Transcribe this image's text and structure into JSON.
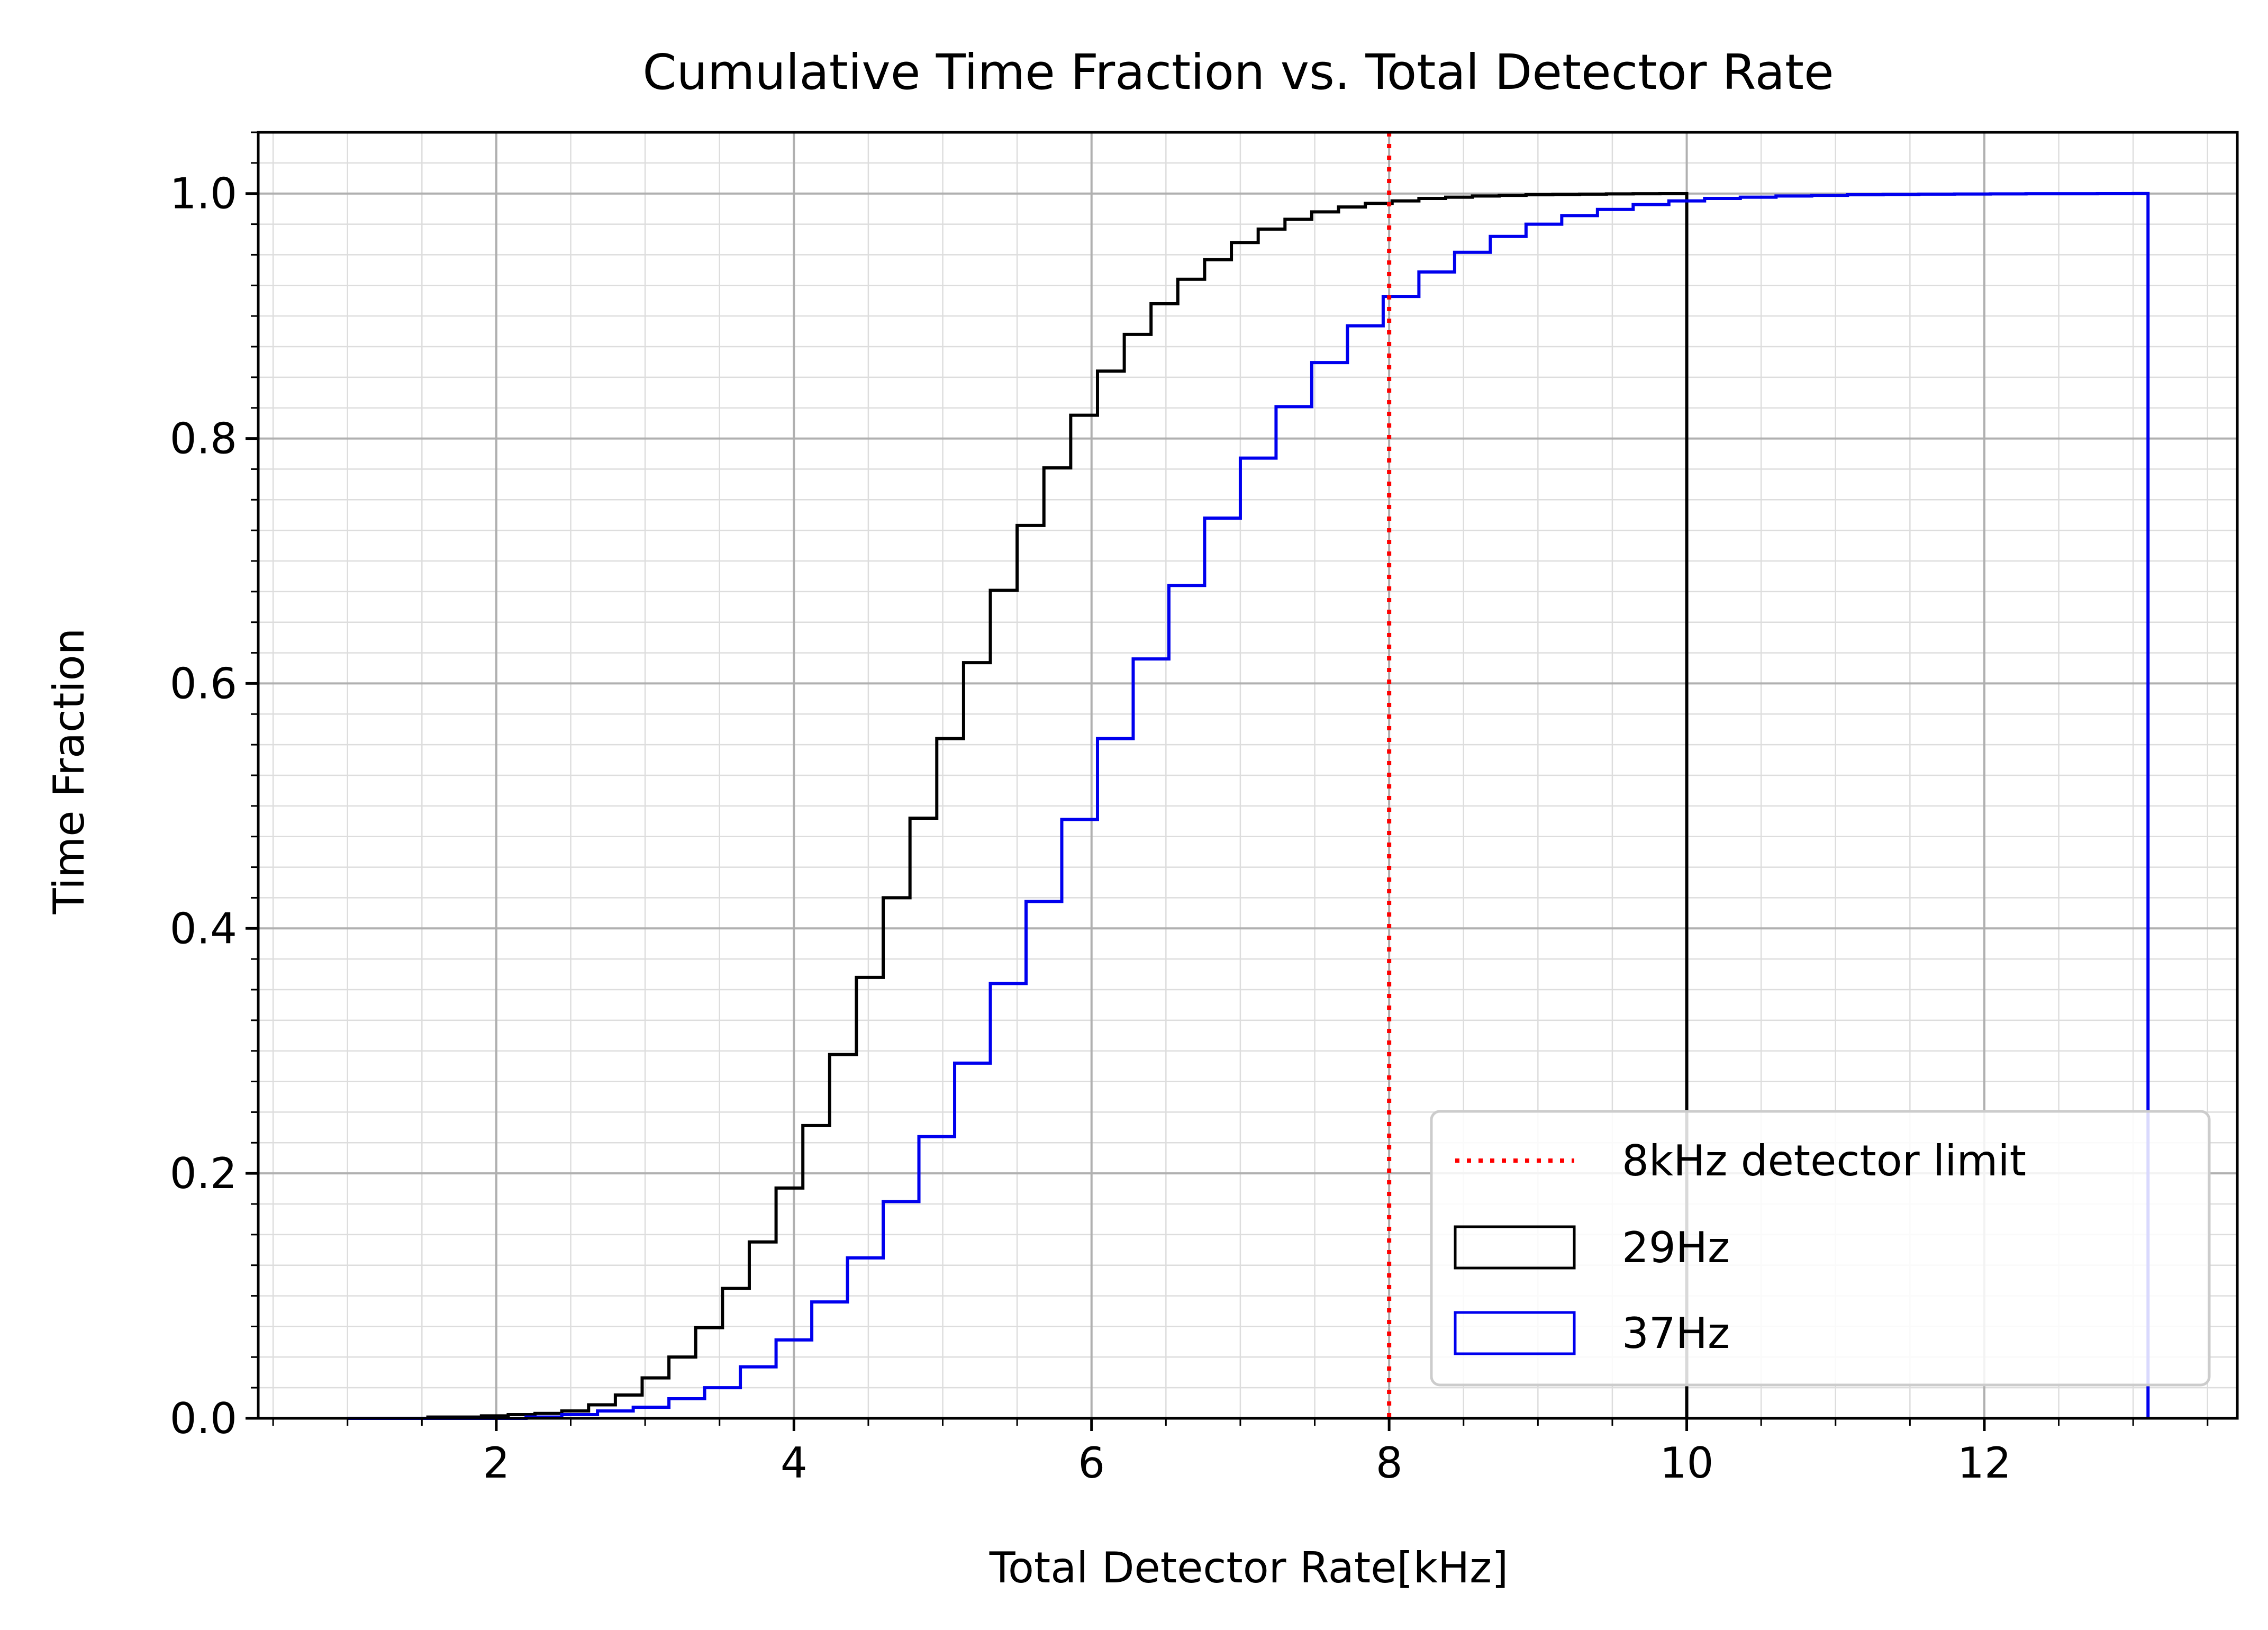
{
  "chart_data": {
    "type": "step",
    "title": "Cumulative Time Fraction vs. Total Detector Rate",
    "xlabel": "Total Detector Rate[kHz]",
    "ylabel": "Time Fraction",
    "xlim": [
      0.4,
      13.7
    ],
    "ylim": [
      0.0,
      1.05
    ],
    "x_ticks": [
      2,
      4,
      6,
      8,
      10,
      12
    ],
    "x_tick_labels": [
      "2",
      "4",
      "6",
      "8",
      "10",
      "12"
    ],
    "y_ticks": [
      0.0,
      0.2,
      0.4,
      0.6,
      0.8,
      1.0
    ],
    "y_tick_labels": [
      "0.0",
      "0.2",
      "0.4",
      "0.6",
      "0.8",
      "1.0"
    ],
    "grid": "major and minor",
    "legend_position": "lower-right",
    "vline": {
      "x": 8,
      "label": "8kHz detector limit",
      "color": "#ff0000",
      "style": "dotted"
    },
    "series": [
      {
        "name": "29Hz",
        "color": "#000000",
        "bin_width": 0.18,
        "x_start": 1.0,
        "x_end": 10.0,
        "values": [
          0.0,
          0.0,
          0.0,
          0.001,
          0.001,
          0.002,
          0.003,
          0.004,
          0.006,
          0.011,
          0.019,
          0.033,
          0.05,
          0.074,
          0.106,
          0.144,
          0.188,
          0.239,
          0.297,
          0.36,
          0.425,
          0.49,
          0.555,
          0.617,
          0.676,
          0.729,
          0.776,
          0.819,
          0.855,
          0.885,
          0.91,
          0.93,
          0.946,
          0.96,
          0.971,
          0.979,
          0.985,
          0.989,
          0.992,
          0.994,
          0.996,
          0.997,
          0.998,
          0.9985,
          0.999,
          0.9993,
          0.9995,
          0.9997,
          0.9998,
          0.9999
        ]
      },
      {
        "name": "37Hz",
        "color": "#0000ee",
        "bin_width": 0.24,
        "x_start": 1.0,
        "x_end": 13.1,
        "values": [
          0.0,
          0.0,
          0.0,
          0.0,
          0.0,
          0.001,
          0.003,
          0.006,
          0.009,
          0.016,
          0.025,
          0.042,
          0.064,
          0.095,
          0.131,
          0.177,
          0.23,
          0.29,
          0.355,
          0.422,
          0.489,
          0.555,
          0.62,
          0.68,
          0.735,
          0.784,
          0.826,
          0.862,
          0.892,
          0.916,
          0.936,
          0.952,
          0.965,
          0.975,
          0.982,
          0.987,
          0.991,
          0.994,
          0.996,
          0.997,
          0.998,
          0.9985,
          0.999,
          0.9993,
          0.9995,
          0.9996,
          0.9997,
          0.9998,
          0.9998,
          0.9999,
          1.0
        ]
      }
    ],
    "legend": [
      "8kHz detector limit",
      "29Hz",
      "37Hz"
    ]
  }
}
